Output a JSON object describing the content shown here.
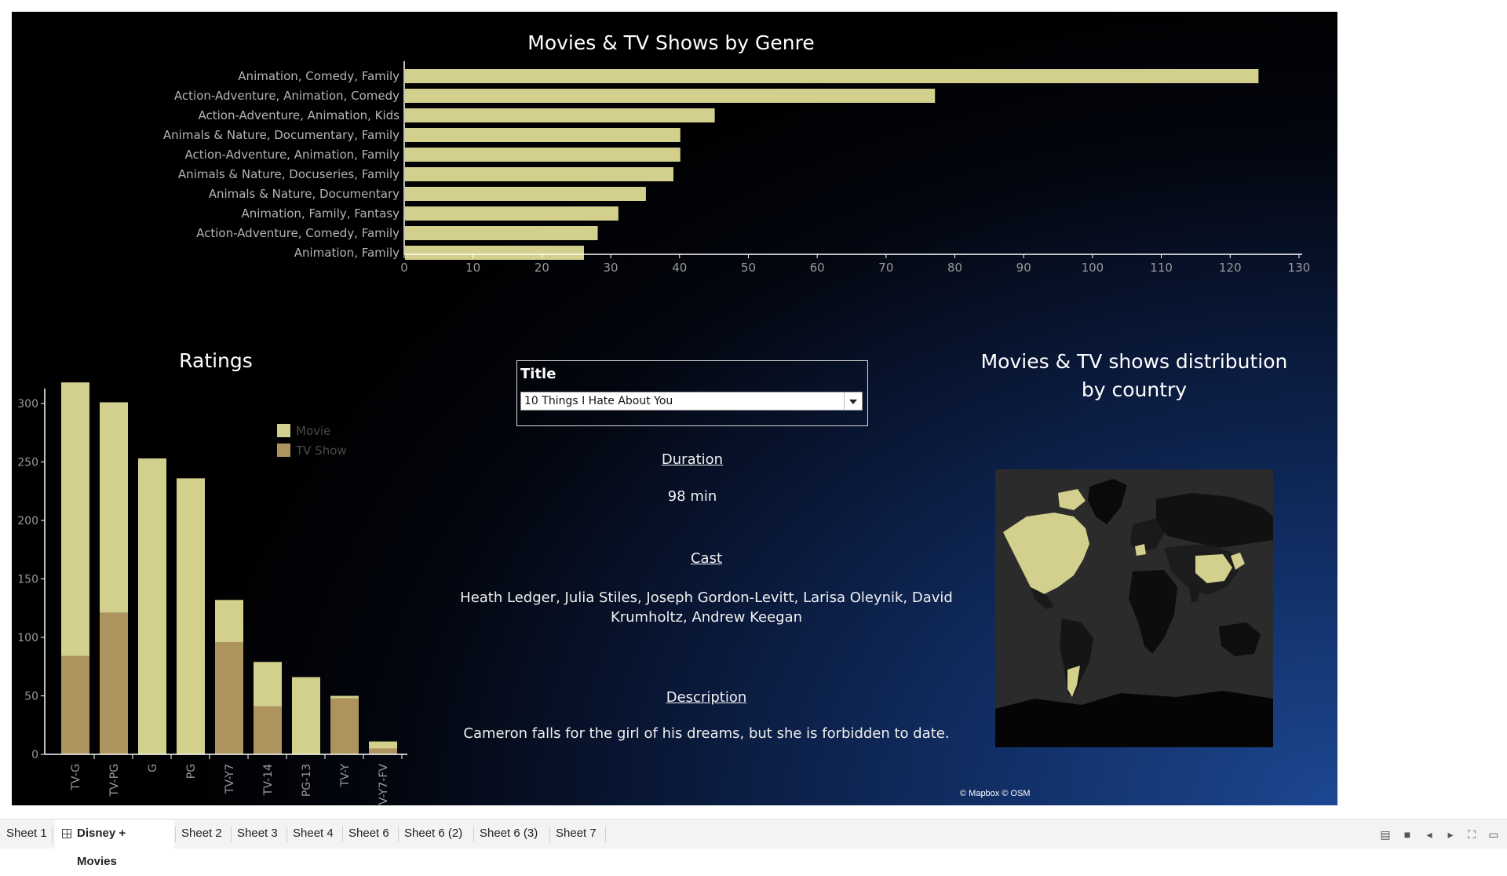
{
  "genre_chart": {
    "title": "Movies & TV Shows by Genre",
    "chart_data": {
      "type": "bar",
      "orientation": "horizontal",
      "title": "Movies & TV Shows by Genre",
      "categories": [
        "Animation, Comedy, Family",
        "Action-Adventure, Animation, Comedy",
        "Action-Adventure, Animation, Kids",
        "Animals & Nature, Documentary, Family",
        "Action-Adventure, Animation, Family",
        "Animals & Nature, Docuseries, Family",
        "Animals & Nature, Documentary",
        "Animation, Family, Fantasy",
        "Action-Adventure, Comedy, Family",
        "Animation, Family"
      ],
      "values": [
        124,
        77,
        45,
        40,
        40,
        39,
        35,
        31,
        28,
        26
      ],
      "xlim": [
        0,
        130
      ],
      "xticks": [
        "0",
        "10",
        "20",
        "30",
        "40",
        "50",
        "60",
        "70",
        "80",
        "90",
        "100",
        "110",
        "120",
        "130"
      ],
      "color": "#d3d08e"
    }
  },
  "ratings_chart": {
    "title": "Ratings",
    "chart_data": {
      "type": "bar",
      "stacked": true,
      "title": "Ratings",
      "categories": [
        "TV-G",
        "TV-PG",
        "G",
        "PG",
        "TV-Y7",
        "TV-14",
        "PG-13",
        "TV-Y",
        "TV-Y7-FV"
      ],
      "series": [
        {
          "name": "Movie",
          "color": "#d3d08e",
          "values": [
            234,
            180,
            253,
            236,
            36,
            38,
            66,
            2,
            6
          ]
        },
        {
          "name": "TV Show",
          "color": "#ad935e",
          "values": [
            84,
            121,
            0,
            0,
            96,
            41,
            0,
            48,
            5
          ]
        }
      ],
      "ylim": [
        0,
        330
      ],
      "yticks": [
        "0",
        "50",
        "100",
        "150",
        "200",
        "250",
        "300"
      ],
      "legend": "top-right"
    }
  },
  "filter": {
    "title": "Title",
    "selected": "10 Things I Hate About You"
  },
  "details": {
    "duration_label": "Duration",
    "duration_value": "98 min",
    "cast_label": "Cast",
    "cast_value": "Heath Ledger, Julia Stiles, Joseph Gordon-Levitt, Larisa Oleynik, David Krumholtz, Andrew Keegan",
    "description_label": "Description",
    "description_value": "Cameron falls for the girl of his dreams, but she is forbidden to date."
  },
  "map": {
    "title": "Movies & TV shows distribution by country",
    "attribution": "© Mapbox © OSM",
    "highlight_color": "#d3d08e",
    "base_color": "#2a2a2a"
  },
  "tabs": [
    {
      "label": "Sheet 1"
    },
    {
      "label": "Disney + Movies",
      "active": true
    },
    {
      "label": "Sheet 2"
    },
    {
      "label": "Sheet 3"
    },
    {
      "label": "Sheet 4"
    },
    {
      "label": "Sheet 6"
    },
    {
      "label": "Sheet 6 (2)"
    },
    {
      "label": "Sheet 6 (3)"
    },
    {
      "label": "Sheet 7"
    }
  ]
}
